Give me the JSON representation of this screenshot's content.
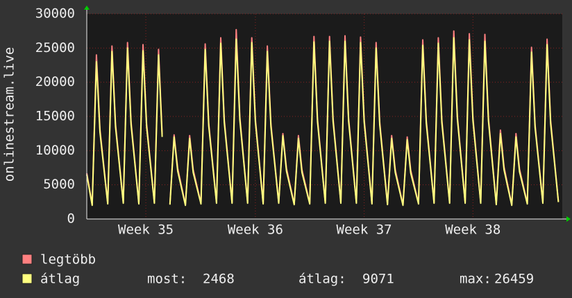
{
  "chart_data": {
    "type": "line",
    "y_label": "onlinestream.live",
    "x": [
      0,
      0.35,
      0.62,
      0.85,
      1.35,
      1.62,
      1.85,
      2.35,
      2.62,
      2.85,
      3.35,
      3.62,
      3.85,
      4.35,
      4.62,
      4.85,
      4.95,
      5.35,
      5.62,
      5.85,
      6.35,
      6.62,
      6.85,
      7.35,
      7.62,
      7.85,
      8.35,
      8.62,
      8.85,
      9.35,
      9.62,
      9.85,
      10.35,
      10.62,
      10.85,
      11.35,
      11.62,
      11.85,
      12.35,
      12.62,
      12.85,
      13.35,
      13.62,
      13.85,
      14.35,
      14.62,
      14.85,
      15.35,
      15.62,
      15.85,
      16.35,
      16.62,
      16.85,
      17.35,
      17.62,
      17.85,
      18.35,
      18.62,
      18.85,
      19.35,
      19.62,
      19.85,
      20.35,
      20.62,
      20.85,
      21.35,
      21.62,
      21.85,
      22.35,
      22.62,
      22.85,
      23.35,
      23.62,
      23.85,
      24.35,
      24.62,
      24.85,
      25.35,
      25.62,
      25.85,
      26.35,
      26.62,
      26.85,
      27.35,
      27.62,
      27.85,
      28.35,
      28.62,
      28.85,
      29.35,
      29.62,
      29.85,
      30.35
    ],
    "series": [
      {
        "name": "legtöbb",
        "color": "#ff8080",
        "values": [
          6700,
          2100,
          24000,
          13100,
          2300,
          25300,
          13900,
          2400,
          25800,
          14200,
          2300,
          25500,
          13900,
          2400,
          24800,
          12400,
          null,
          2200,
          12300,
          7400,
          2100,
          12200,
          7200,
          2300,
          25600,
          14000,
          2400,
          26500,
          14500,
          2400,
          27700,
          14900,
          2400,
          26500,
          14600,
          2300,
          25300,
          13900,
          2400,
          12500,
          7400,
          2200,
          12200,
          7200,
          2300,
          26700,
          14600,
          2400,
          26700,
          14700,
          2400,
          26800,
          14700,
          2400,
          26600,
          14600,
          2300,
          25800,
          14200,
          2200,
          12200,
          7200,
          2100,
          12000,
          7100,
          2300,
          26200,
          14400,
          2400,
          26500,
          14500,
          2400,
          27500,
          15000,
          2400,
          27100,
          14800,
          2400,
          27000,
          14700,
          2200,
          13000,
          7600,
          2100,
          12500,
          7300,
          2300,
          25100,
          13800,
          2400,
          26300,
          14400,
          2568
        ]
      },
      {
        "name": "átlag",
        "color": "#ffff80",
        "values": [
          6500,
          2000,
          23000,
          12700,
          2200,
          24500,
          13500,
          2300,
          25000,
          13800,
          2200,
          24600,
          13500,
          2300,
          24000,
          12000,
          null,
          2100,
          12000,
          7000,
          2000,
          11800,
          6800,
          2200,
          24800,
          13600,
          2300,
          25700,
          14100,
          2300,
          26300,
          14500,
          2300,
          25800,
          14200,
          2200,
          24500,
          13500,
          2300,
          12200,
          7000,
          2100,
          11800,
          6800,
          2200,
          25900,
          14200,
          2300,
          26000,
          14300,
          2300,
          26000,
          14300,
          2300,
          25800,
          14200,
          2200,
          25000,
          13800,
          2100,
          11800,
          6800,
          2000,
          11600,
          6700,
          2200,
          25400,
          14000,
          2300,
          25700,
          14100,
          2300,
          26500,
          14600,
          2300,
          26200,
          14400,
          2300,
          26000,
          14300,
          2100,
          12500,
          7200,
          2000,
          12000,
          6900,
          2200,
          24400,
          13400,
          2300,
          25500,
          14000,
          2468
        ]
      }
    ],
    "xlim": [
      0,
      30.6
    ],
    "xticks": [
      {
        "value": 3.8,
        "label": "Week 35"
      },
      {
        "value": 10.85,
        "label": "Week 36"
      },
      {
        "value": 17.85,
        "label": "Week 37"
      },
      {
        "value": 24.85,
        "label": "Week 38"
      }
    ],
    "ylim": [
      0,
      30000
    ],
    "yticks": [
      0,
      5000,
      10000,
      15000,
      20000,
      25000,
      30000
    ],
    "grid": true,
    "stats": [
      {
        "label": "most:",
        "value": 2468
      },
      {
        "label": "átlag:",
        "value": 9071
      },
      {
        "label": "max:",
        "value": 26459
      }
    ]
  }
}
